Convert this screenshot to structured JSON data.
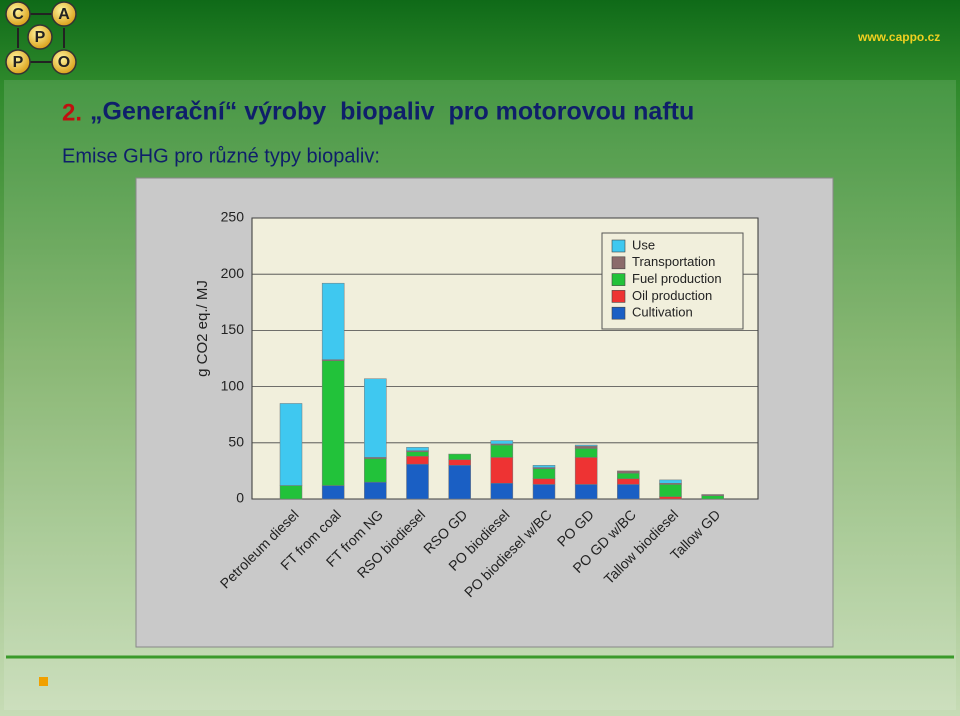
{
  "header": {
    "logo_letters": [
      "C",
      "A",
      "P",
      "P",
      "O"
    ],
    "website": "www.cappo.cz"
  },
  "slide": {
    "number": "2.",
    "title": "„Generační“ výroby  biopaliv  pro motorovou naftu",
    "subtitle": "Emise GHG pro různé typy biopaliv:"
  },
  "chart_data": {
    "type": "stacked-bar",
    "y_label": "g CO2 eq./ MJ",
    "categories": [
      "Petroleum diesel",
      "FT from coal",
      "FT from NG",
      "RSO biodiesel",
      "RSO GD",
      "PO biodiesel",
      "PO biodiesel w/BC",
      "PO GD",
      "PO GD w/BC",
      "Tallow biodiesel",
      "Tallow GD"
    ],
    "series": [
      {
        "name": "Cultivation",
        "color": "#1a5fc4",
        "values": [
          0,
          12,
          15,
          31,
          30,
          14,
          13,
          13,
          13,
          0,
          0
        ]
      },
      {
        "name": "Oil production",
        "color": "#ee3333",
        "values": [
          0,
          0,
          0,
          7,
          5,
          23,
          5,
          24,
          5,
          2,
          0
        ]
      },
      {
        "name": "Fuel production",
        "color": "#22c23a",
        "values": [
          12,
          111,
          21,
          4,
          5,
          11,
          9,
          8,
          5,
          11,
          3
        ]
      },
      {
        "name": "Transportation",
        "color": "#8b6b6b",
        "values": [
          0,
          1,
          1,
          1,
          0,
          1,
          1,
          2,
          2,
          1,
          1
        ]
      },
      {
        "name": "Use",
        "color": "#3fc8f0",
        "values": [
          73,
          68,
          70,
          3,
          0,
          3,
          2,
          1,
          0,
          3,
          0
        ]
      }
    ],
    "ylim": [
      0,
      250
    ],
    "yticks": [
      0,
      50,
      100,
      150,
      200,
      250
    ],
    "grid": true,
    "legend": "top-right"
  }
}
